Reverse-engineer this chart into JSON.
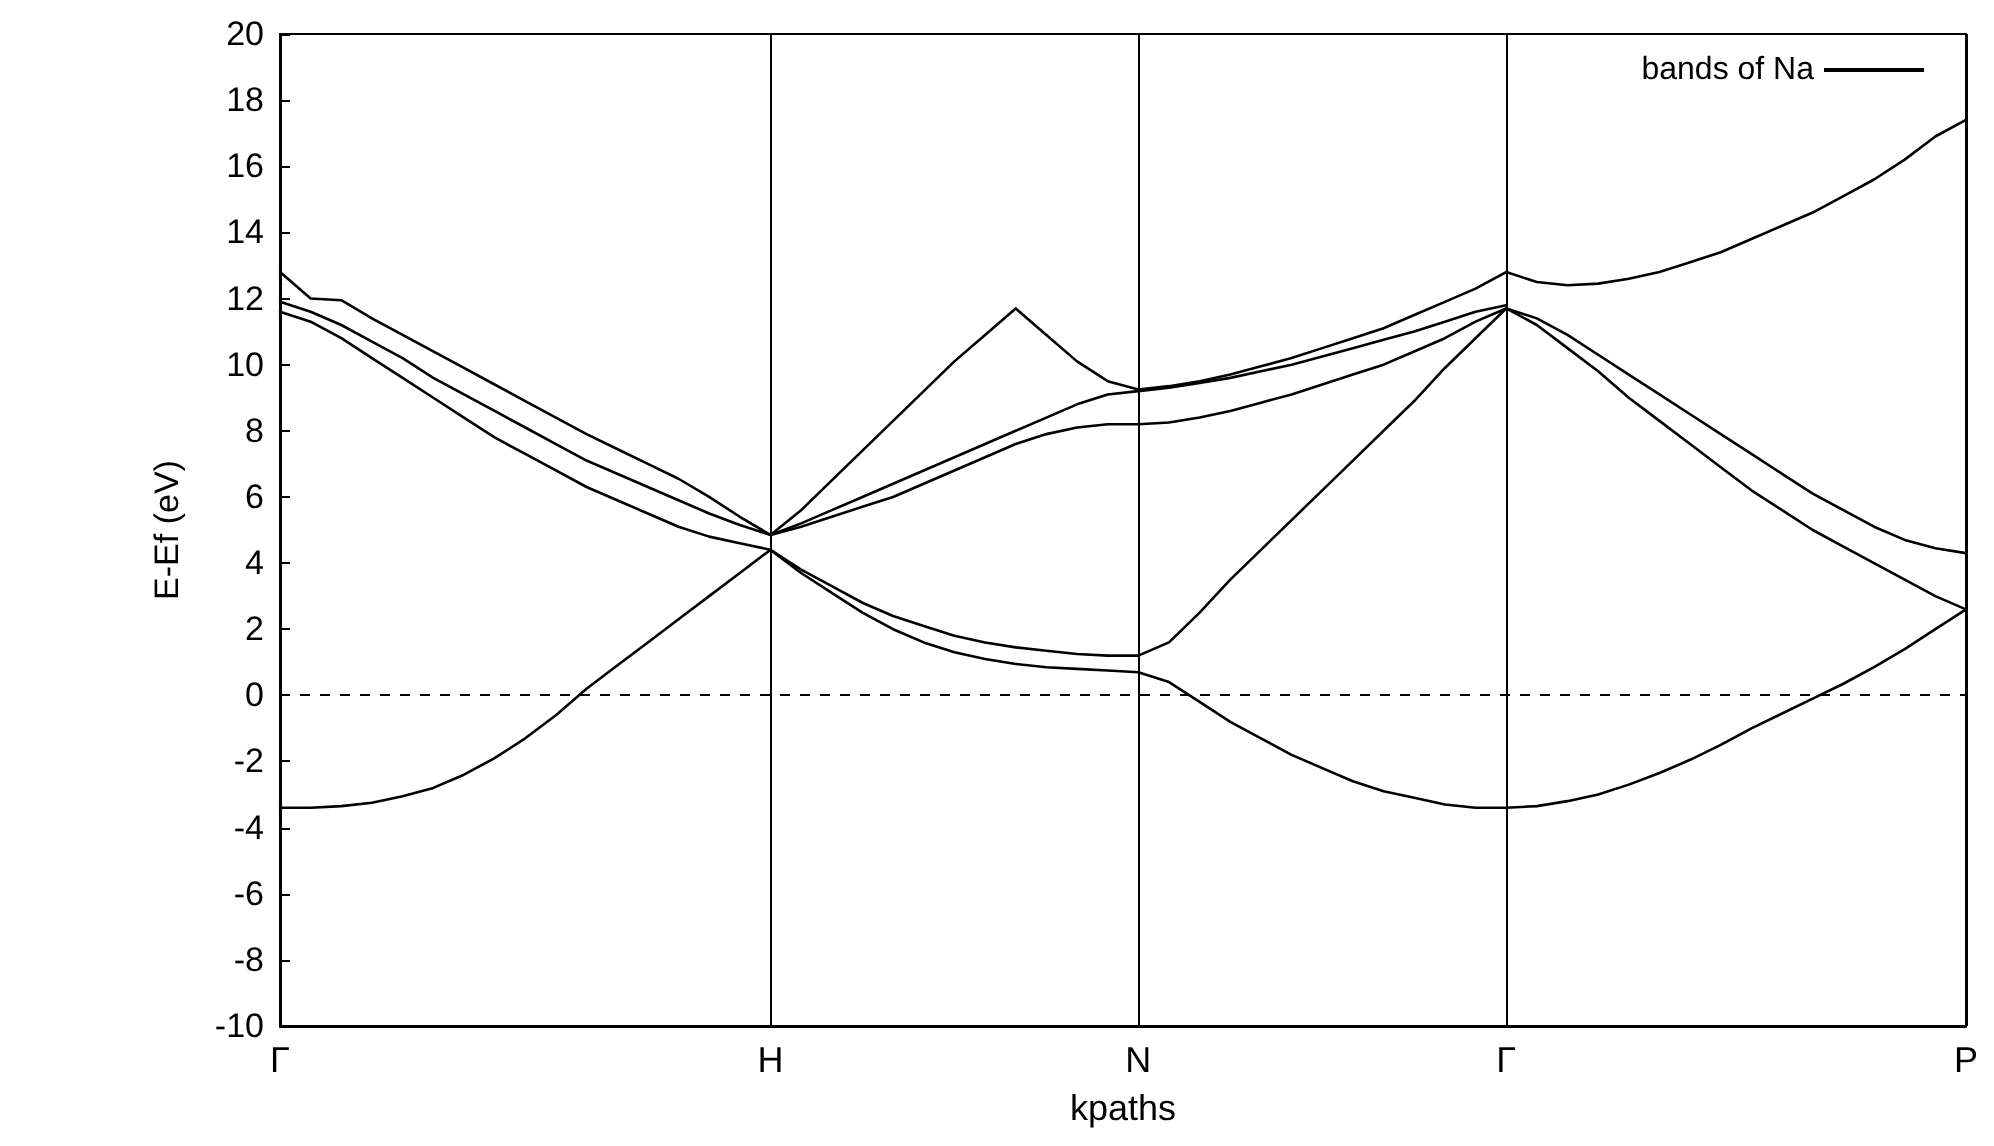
{
  "chart_data": {
    "type": "line",
    "xlabel": "kpaths",
    "ylabel": "E-Ef (eV)",
    "categories": [
      "Γ",
      null,
      null,
      null,
      null,
      null,
      null,
      null,
      null,
      null,
      null,
      null,
      null,
      null,
      null,
      null,
      "H",
      null,
      null,
      null,
      null,
      null,
      null,
      null,
      null,
      null,
      null,
      null,
      "N",
      null,
      null,
      null,
      null,
      null,
      null,
      null,
      null,
      null,
      null,
      null,
      "Γ",
      null,
      null,
      null,
      null,
      null,
      null,
      null,
      null,
      null,
      null,
      null,
      null,
      null,
      null,
      "P"
    ],
    "ylim": [
      -10,
      20
    ],
    "yticks": [
      -10,
      -8,
      -6,
      -4,
      -2,
      0,
      2,
      4,
      6,
      8,
      10,
      12,
      14,
      16,
      18,
      20
    ],
    "grid": "x",
    "legend": "top right",
    "marker": "none",
    "line_style": "solid",
    "ref_lines": [
      {
        "axis": "y",
        "value": 0,
        "line_style": "dashed",
        "color": "#000000"
      }
    ],
    "series": [
      {
        "name": "bands of Na",
        "color": "#000000",
        "values": [
          -3.4,
          -3.4,
          -3.35,
          -3.25,
          -3.05,
          -2.8,
          -2.4,
          -1.9,
          -1.3,
          -0.6,
          0.2,
          0.9,
          1.6,
          2.3,
          3.0,
          3.7,
          4.4,
          3.7,
          3.1,
          2.5,
          2.0,
          1.6,
          1.3,
          1.1,
          0.95,
          0.85,
          0.8,
          0.75,
          0.7,
          0.4,
          -0.2,
          -0.8,
          -1.3,
          -1.8,
          -2.2,
          -2.6,
          -2.9,
          -3.1,
          -3.3,
          -3.4,
          -3.4,
          -3.35,
          -3.2,
          -3.0,
          -2.7,
          -2.35,
          -1.95,
          -1.5,
          -1.0,
          -0.55,
          -0.1,
          0.35,
          0.85,
          1.4,
          2.0,
          2.6
        ]
      },
      {
        "color": "#000000",
        "values": [
          11.6,
          11.3,
          10.8,
          10.2,
          9.6,
          9.0,
          8.4,
          7.8,
          7.3,
          6.8,
          6.3,
          5.9,
          5.5,
          5.1,
          4.8,
          4.6,
          4.4,
          3.8,
          3.3,
          2.8,
          2.4,
          2.1,
          1.8,
          1.6,
          1.45,
          1.35,
          1.25,
          1.2,
          1.2,
          1.6,
          2.5,
          3.5,
          4.4,
          5.3,
          6.2,
          7.1,
          8.0,
          8.9,
          9.9,
          10.8,
          11.7,
          11.2,
          10.5,
          9.8,
          9.0,
          8.3,
          7.6,
          6.9,
          6.2,
          5.6,
          5.0,
          4.5,
          4.0,
          3.5,
          3.0,
          2.6
        ]
      },
      {
        "color": "#000000",
        "values": [
          11.9,
          11.6,
          11.2,
          10.7,
          10.2,
          9.6,
          9.1,
          8.6,
          8.1,
          7.6,
          7.1,
          6.7,
          6.3,
          5.9,
          5.5,
          5.15,
          4.85,
          5.1,
          5.4,
          5.7,
          6.0,
          6.4,
          6.8,
          7.2,
          7.6,
          7.9,
          8.1,
          8.2,
          8.2,
          8.25,
          8.4,
          8.6,
          8.85,
          9.1,
          9.4,
          9.7,
          10.0,
          10.4,
          10.8,
          11.3,
          11.7,
          11.4,
          10.9,
          10.3,
          9.7,
          9.1,
          8.5,
          7.9,
          7.3,
          6.7,
          6.1,
          5.6,
          5.1,
          4.7,
          4.45,
          4.3
        ]
      },
      {
        "color": "#000000",
        "values": [
          12.8,
          12.0,
          11.95,
          11.4,
          10.9,
          10.4,
          9.9,
          9.4,
          8.9,
          8.4,
          7.9,
          7.45,
          7.0,
          6.55,
          6.0,
          5.4,
          4.85,
          5.2,
          5.6,
          6.0,
          6.4,
          6.8,
          7.2,
          7.6,
          8.0,
          8.4,
          8.8,
          9.1,
          9.2,
          9.3,
          9.45,
          9.6,
          9.8,
          10.0,
          10.25,
          10.5,
          10.75,
          11.0,
          11.3,
          11.6,
          11.8,
          null,
          null,
          null,
          null,
          null,
          null,
          null,
          null,
          null,
          null,
          null,
          null,
          null,
          null,
          null
        ]
      },
      {
        "color": "#000000",
        "values": [
          null,
          null,
          null,
          null,
          null,
          null,
          null,
          null,
          null,
          null,
          null,
          null,
          null,
          null,
          null,
          null,
          4.85,
          5.6,
          6.5,
          7.4,
          8.3,
          9.2,
          10.1,
          10.9,
          11.7,
          10.9,
          10.1,
          9.5,
          9.25,
          9.35,
          9.5,
          9.7,
          9.95,
          10.2,
          10.5,
          10.8,
          11.1,
          11.5,
          11.9,
          12.3,
          12.8,
          12.5,
          12.4,
          12.45,
          12.6,
          12.8,
          13.1,
          13.4,
          13.8,
          14.2,
          14.6,
          15.1,
          15.6,
          16.2,
          16.9,
          17.4
        ]
      }
    ]
  }
}
